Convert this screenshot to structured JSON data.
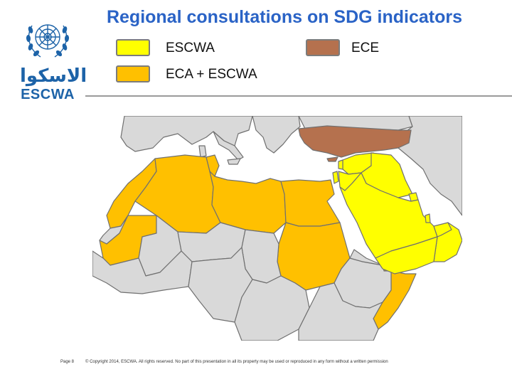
{
  "header": {
    "title": "Regional consultations on SDG indicators"
  },
  "logo": {
    "arabic": "الاسكوا",
    "english": "ESCWA"
  },
  "legend": [
    {
      "label": "ESCWA",
      "color": "#ffff00"
    },
    {
      "label": "ECE",
      "color": "#b5714e"
    },
    {
      "label": "ECA + ESCWA",
      "color": "#ffc000"
    }
  ],
  "map": {
    "colors": {
      "sea": "#ffffff",
      "land_other": "#d9d9d9",
      "border": "#707070",
      "escwa": "#ffff00",
      "eca_escwa": "#ffc000",
      "ece": "#b5714e"
    },
    "highlighted_regions": [
      {
        "group": "ECA + ESCWA",
        "members": [
          "Morocco",
          "Algeria",
          "Tunisia",
          "Libya",
          "Egypt",
          "Sudan",
          "Mauritania",
          "Somalia"
        ]
      },
      {
        "group": "ESCWA",
        "members": [
          "Syria",
          "Lebanon",
          "Jordan",
          "Iraq",
          "Saudi Arabia",
          "Kuwait",
          "Bahrain",
          "Qatar",
          "UAE",
          "Oman",
          "Yemen",
          "Palestine"
        ]
      },
      {
        "group": "ECE",
        "members": [
          "Turkey"
        ]
      }
    ]
  },
  "footer": {
    "page": "Page 8",
    "copyright": "© Copyright 2014, ESCWA. All rights reserved. No part of this presentation in all its property may be used or reproduced in any form without a written permission"
  }
}
